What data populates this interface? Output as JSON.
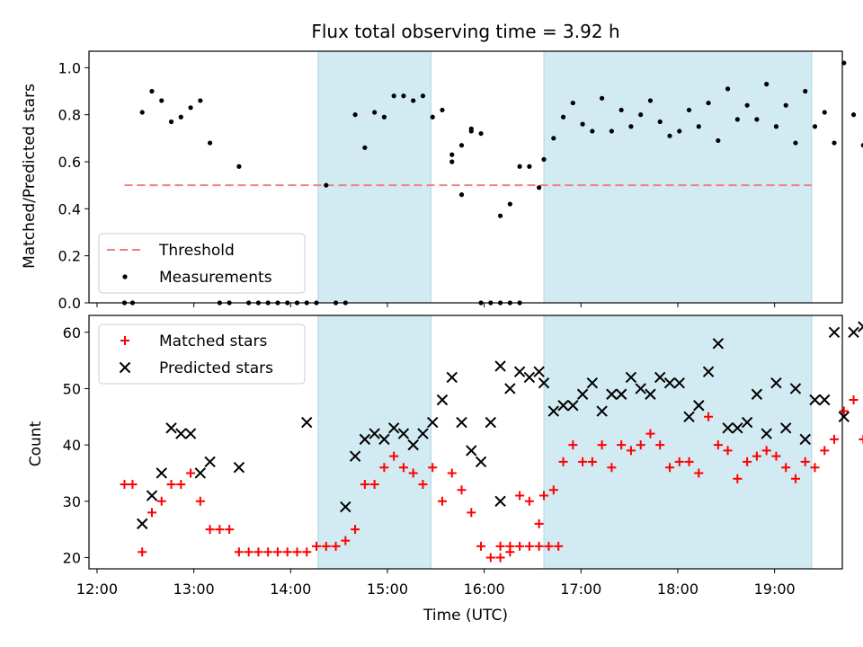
{
  "title": "Flux total observing time = 3.92 h",
  "colors": {
    "shade": "#add8e6",
    "threshold": "#f08080",
    "matched": "#ff0000",
    "predicted": "#000000",
    "measurement": "#000000"
  },
  "chart_data": [
    {
      "type": "scatter",
      "ylabel": "Matched/Predicted stars",
      "xlim": [
        "11:55",
        "19:42"
      ],
      "ylim": [
        0,
        1.07
      ],
      "yticks": [
        0.0,
        0.2,
        0.4,
        0.6,
        0.8,
        1.0
      ],
      "ytick_labels": [
        "0.0",
        "0.2",
        "0.4",
        "0.6",
        "0.8",
        "1.0"
      ],
      "shaded_spans": [
        [
          "14:17",
          "15:27"
        ],
        [
          "16:37",
          "19:23"
        ]
      ],
      "threshold": {
        "name": "Threshold",
        "y": 0.5,
        "x_range": [
          "12:17",
          "19:23"
        ],
        "style": "dashed"
      },
      "legend": {
        "placement": "lower left",
        "entries": [
          "Threshold",
          "Measurements"
        ]
      },
      "series": [
        {
          "name": "Measurements",
          "points": [
            [
              "12:17",
              0
            ],
            [
              "12:22",
              0
            ],
            [
              "12:28",
              0.81
            ],
            [
              "12:34",
              0.9
            ],
            [
              "12:40",
              0.86
            ],
            [
              "12:46",
              0.77
            ],
            [
              "12:52",
              0.79
            ],
            [
              "12:58",
              0.83
            ],
            [
              "13:04",
              0.86
            ],
            [
              "13:10",
              0.68
            ],
            [
              "13:16",
              0
            ],
            [
              "13:22",
              0
            ],
            [
              "13:28",
              0.58
            ],
            [
              "13:34",
              0
            ],
            [
              "13:40",
              0
            ],
            [
              "13:46",
              0
            ],
            [
              "13:52",
              0
            ],
            [
              "13:58",
              0
            ],
            [
              "14:04",
              0
            ],
            [
              "14:10",
              0
            ],
            [
              "14:16",
              0
            ],
            [
              "14:22",
              0.5
            ],
            [
              "14:28",
              0
            ],
            [
              "14:34",
              0
            ],
            [
              "14:40",
              0.8
            ],
            [
              "14:46",
              0.66
            ],
            [
              "14:52",
              0.81
            ],
            [
              "14:58",
              0.79
            ],
            [
              "15:04",
              0.88
            ],
            [
              "15:10",
              0.88
            ],
            [
              "15:16",
              0.86
            ],
            [
              "15:22",
              0.88
            ],
            [
              "15:28",
              0.79
            ],
            [
              "15:34",
              0.82
            ],
            [
              "15:40",
              0.63
            ],
            [
              "15:46",
              0.67
            ],
            [
              "15:52",
              0.73
            ],
            [
              "15:58",
              0.72
            ],
            [
              "15:40",
              0.6
            ],
            [
              "15:46",
              0.46
            ],
            [
              "15:52",
              0.74
            ],
            [
              "15:58",
              0
            ],
            [
              "16:04",
              0
            ],
            [
              "16:10",
              0
            ],
            [
              "16:16",
              0
            ],
            [
              "16:22",
              0
            ],
            [
              "16:10",
              0.37
            ],
            [
              "16:16",
              0.42
            ],
            [
              "16:22",
              0.58
            ],
            [
              "16:28",
              0.58
            ],
            [
              "16:34",
              0.49
            ],
            [
              "16:37",
              0.61
            ],
            [
              "16:43",
              0.7
            ],
            [
              "16:49",
              0.79
            ],
            [
              "16:55",
              0.85
            ],
            [
              "17:01",
              0.76
            ],
            [
              "17:07",
              0.73
            ],
            [
              "17:13",
              0.87
            ],
            [
              "17:19",
              0.73
            ],
            [
              "17:25",
              0.82
            ],
            [
              "17:31",
              0.75
            ],
            [
              "17:37",
              0.8
            ],
            [
              "17:43",
              0.86
            ],
            [
              "17:49",
              0.77
            ],
            [
              "17:55",
              0.71
            ],
            [
              "18:01",
              0.73
            ],
            [
              "18:07",
              0.82
            ],
            [
              "18:13",
              0.75
            ],
            [
              "18:19",
              0.85
            ],
            [
              "18:25",
              0.69
            ],
            [
              "18:31",
              0.91
            ],
            [
              "18:37",
              0.78
            ],
            [
              "18:43",
              0.84
            ],
            [
              "18:49",
              0.78
            ],
            [
              "18:55",
              0.93
            ],
            [
              "19:01",
              0.75
            ],
            [
              "19:07",
              0.84
            ],
            [
              "19:13",
              0.68
            ],
            [
              "19:19",
              0.9
            ],
            [
              "19:25",
              0.75
            ],
            [
              "19:31",
              0.81
            ],
            [
              "19:37",
              0.68
            ],
            [
              "19:43",
              1.02
            ],
            [
              "19:49",
              0.8
            ],
            [
              "19:55",
              0.67
            ]
          ]
        }
      ]
    },
    {
      "type": "scatter",
      "xlabel": "Time (UTC)",
      "ylabel": "Count",
      "xlim": [
        "11:55",
        "19:42"
      ],
      "ylim": [
        18,
        63
      ],
      "yticks": [
        20,
        30,
        40,
        50,
        60
      ],
      "ytick_labels": [
        "20",
        "30",
        "40",
        "50",
        "60"
      ],
      "xticks": [
        "12:00",
        "13:00",
        "14:00",
        "15:00",
        "16:00",
        "17:00",
        "18:00",
        "19:00"
      ],
      "xtick_labels": [
        "12:00",
        "13:00",
        "14:00",
        "15:00",
        "16:00",
        "17:00",
        "18:00",
        "19:00"
      ],
      "shaded_spans": [
        [
          "14:17",
          "15:27"
        ],
        [
          "16:37",
          "19:23"
        ]
      ],
      "legend": {
        "placement": "upper left",
        "entries": [
          "Matched stars",
          "Predicted stars"
        ]
      },
      "series": [
        {
          "name": "Matched stars",
          "marker": "plus",
          "points": [
            [
              "12:17",
              33
            ],
            [
              "12:22",
              33
            ],
            [
              "12:28",
              21
            ],
            [
              "12:34",
              28
            ],
            [
              "12:40",
              30
            ],
            [
              "12:46",
              33
            ],
            [
              "12:52",
              33
            ],
            [
              "12:58",
              35
            ],
            [
              "13:04",
              30
            ],
            [
              "13:10",
              25
            ],
            [
              "13:16",
              25
            ],
            [
              "13:22",
              25
            ],
            [
              "13:28",
              21
            ],
            [
              "13:34",
              21
            ],
            [
              "13:40",
              21
            ],
            [
              "13:46",
              21
            ],
            [
              "13:52",
              21
            ],
            [
              "13:58",
              21
            ],
            [
              "14:04",
              21
            ],
            [
              "14:10",
              21
            ],
            [
              "14:16",
              22
            ],
            [
              "14:22",
              22
            ],
            [
              "14:28",
              22
            ],
            [
              "14:34",
              23
            ],
            [
              "14:40",
              25
            ],
            [
              "14:46",
              33
            ],
            [
              "14:52",
              33
            ],
            [
              "14:58",
              36
            ],
            [
              "15:04",
              38
            ],
            [
              "15:10",
              36
            ],
            [
              "15:16",
              35
            ],
            [
              "15:22",
              33
            ],
            [
              "15:28",
              36
            ],
            [
              "15:34",
              30
            ],
            [
              "15:40",
              35
            ],
            [
              "15:46",
              32
            ],
            [
              "15:52",
              28
            ],
            [
              "15:58",
              22
            ],
            [
              "16:04",
              20
            ],
            [
              "16:10",
              22
            ],
            [
              "16:16",
              22
            ],
            [
              "16:22",
              22
            ],
            [
              "16:28",
              22
            ],
            [
              "16:34",
              22
            ],
            [
              "16:40",
              22
            ],
            [
              "16:46",
              22
            ],
            [
              "16:10",
              20
            ],
            [
              "16:16",
              21
            ],
            [
              "16:22",
              31
            ],
            [
              "16:28",
              30
            ],
            [
              "16:34",
              26
            ],
            [
              "16:37",
              31
            ],
            [
              "16:43",
              32
            ],
            [
              "16:49",
              37
            ],
            [
              "16:55",
              40
            ],
            [
              "17:01",
              37
            ],
            [
              "17:07",
              37
            ],
            [
              "17:13",
              40
            ],
            [
              "17:19",
              36
            ],
            [
              "17:25",
              40
            ],
            [
              "17:31",
              39
            ],
            [
              "17:37",
              40
            ],
            [
              "17:43",
              42
            ],
            [
              "17:49",
              40
            ],
            [
              "17:55",
              36
            ],
            [
              "18:01",
              37
            ],
            [
              "18:07",
              37
            ],
            [
              "18:13",
              35
            ],
            [
              "18:19",
              45
            ],
            [
              "18:25",
              40
            ],
            [
              "18:31",
              39
            ],
            [
              "18:37",
              34
            ],
            [
              "18:43",
              37
            ],
            [
              "18:49",
              38
            ],
            [
              "18:55",
              39
            ],
            [
              "19:01",
              38
            ],
            [
              "19:07",
              36
            ],
            [
              "19:13",
              34
            ],
            [
              "19:19",
              37
            ],
            [
              "19:25",
              36
            ],
            [
              "19:31",
              39
            ],
            [
              "19:37",
              41
            ],
            [
              "19:43",
              46
            ],
            [
              "19:49",
              48
            ],
            [
              "19:55",
              41
            ]
          ]
        },
        {
          "name": "Predicted stars",
          "marker": "x",
          "points": [
            [
              "12:28",
              26
            ],
            [
              "12:34",
              31
            ],
            [
              "12:40",
              35
            ],
            [
              "12:46",
              43
            ],
            [
              "12:52",
              42
            ],
            [
              "12:58",
              42
            ],
            [
              "13:04",
              35
            ],
            [
              "13:10",
              37
            ],
            [
              "13:28",
              36
            ],
            [
              "14:10",
              44
            ],
            [
              "14:34",
              29
            ],
            [
              "14:40",
              38
            ],
            [
              "14:46",
              41
            ],
            [
              "14:52",
              42
            ],
            [
              "14:58",
              41
            ],
            [
              "15:04",
              43
            ],
            [
              "15:10",
              42
            ],
            [
              "15:16",
              40
            ],
            [
              "15:22",
              42
            ],
            [
              "15:28",
              44
            ],
            [
              "15:34",
              48
            ],
            [
              "15:40",
              52
            ],
            [
              "15:46",
              44
            ],
            [
              "15:52",
              39
            ],
            [
              "15:58",
              37
            ],
            [
              "16:04",
              44
            ],
            [
              "16:10",
              30
            ],
            [
              "16:10",
              54
            ],
            [
              "16:16",
              50
            ],
            [
              "16:22",
              53
            ],
            [
              "16:28",
              52
            ],
            [
              "16:34",
              53
            ],
            [
              "16:37",
              51
            ],
            [
              "16:43",
              46
            ],
            [
              "16:49",
              47
            ],
            [
              "16:55",
              47
            ],
            [
              "17:01",
              49
            ],
            [
              "17:07",
              51
            ],
            [
              "17:13",
              46
            ],
            [
              "17:19",
              49
            ],
            [
              "17:25",
              49
            ],
            [
              "17:31",
              52
            ],
            [
              "17:37",
              50
            ],
            [
              "17:43",
              49
            ],
            [
              "17:49",
              52
            ],
            [
              "17:55",
              51
            ],
            [
              "18:01",
              51
            ],
            [
              "18:07",
              45
            ],
            [
              "18:13",
              47
            ],
            [
              "18:19",
              53
            ],
            [
              "18:25",
              58
            ],
            [
              "18:31",
              43
            ],
            [
              "18:37",
              43
            ],
            [
              "18:43",
              44
            ],
            [
              "18:49",
              49
            ],
            [
              "18:55",
              42
            ],
            [
              "19:01",
              51
            ],
            [
              "19:07",
              43
            ],
            [
              "19:13",
              50
            ],
            [
              "19:19",
              41
            ],
            [
              "19:25",
              48
            ],
            [
              "19:31",
              48
            ],
            [
              "19:37",
              60
            ],
            [
              "19:43",
              45
            ],
            [
              "19:49",
              60
            ],
            [
              "19:55",
              61
            ]
          ]
        }
      ]
    }
  ]
}
